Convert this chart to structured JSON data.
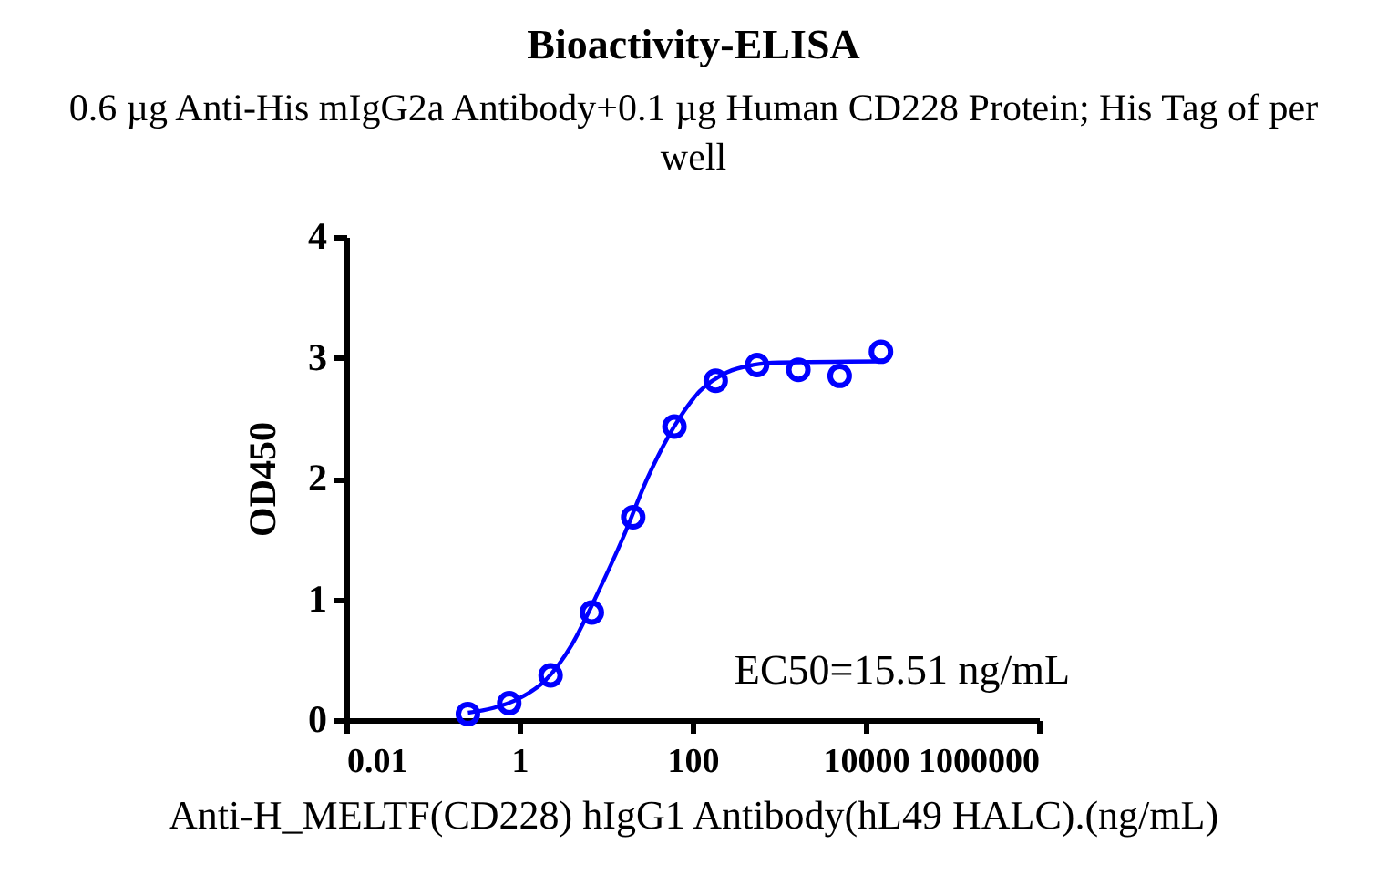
{
  "chart_data": {
    "type": "scatter",
    "title": "Bioactivity-ELISA",
    "subtitle": "0.6 µg Anti-His mIgG2a Antibody+0.1 µg Human CD228 Protein; His Tag of per well",
    "xlabel": "Anti-H_MELTF(CD228) hIgG1 Antibody(hL49 HALC).(ng/mL)",
    "ylabel": "OD450",
    "log": "x",
    "xlim": [
      0.01,
      1000000
    ],
    "xticks": [
      0.01,
      1,
      100,
      10000,
      1000000
    ],
    "ylim": [
      0,
      4
    ],
    "yticks": [
      {
        "value": 0,
        "label": "0"
      },
      {
        "value": 1,
        "label": "1"
      },
      {
        "value": 2,
        "label": "2"
      },
      {
        "value": 3,
        "label": "3"
      },
      {
        "value": 4,
        "label": "4"
      }
    ],
    "grid": false,
    "legend": false,
    "annotations": [
      "EC50=15.51 ng/mL"
    ],
    "series": [
      {
        "marker": "circle",
        "color": "#0000ff",
        "x": [
          0.254,
          0.762,
          2.29,
          6.86,
          20.6,
          61.7,
          185,
          556,
          1667,
          5000,
          15000
        ],
        "values": [
          0.05,
          0.14,
          0.37,
          0.89,
          1.68,
          2.43,
          2.81,
          2.94,
          2.9,
          2.85,
          3.05
        ]
      },
      {
        "type": "line",
        "marker": "none",
        "line_style": "solid",
        "color": "#0000ff",
        "x": [
          0.254,
          0.5,
          1,
          2,
          4,
          8,
          15.5,
          30,
          60,
          120,
          250,
          500,
          1000,
          15000
        ],
        "values": [
          0.06,
          0.1,
          0.18,
          0.33,
          0.62,
          1.05,
          1.5,
          2.0,
          2.42,
          2.72,
          2.88,
          2.94,
          2.96,
          2.97
        ]
      }
    ]
  }
}
